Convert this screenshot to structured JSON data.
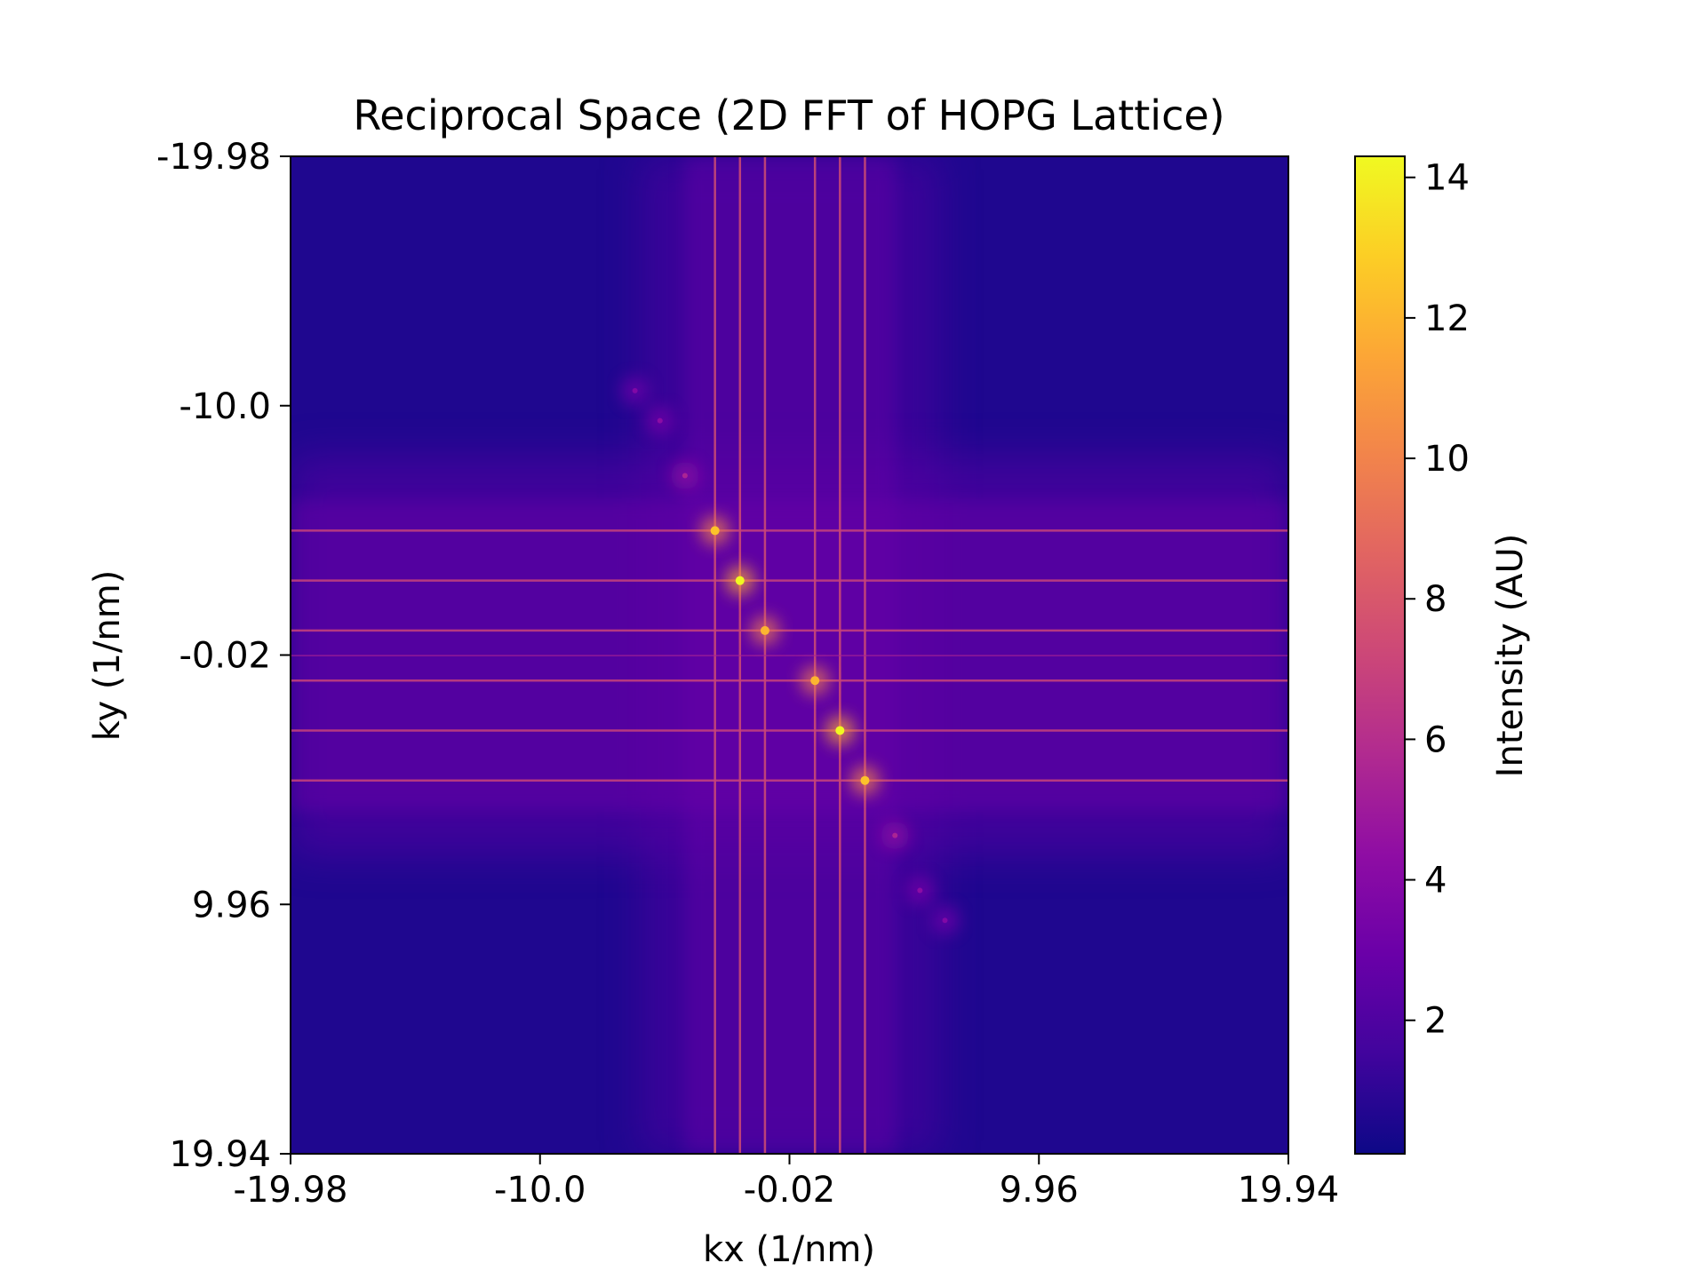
{
  "chart_data": {
    "type": "heatmap",
    "title": "Reciprocal Space (2D FFT of HOPG Lattice)",
    "xlabel": "kx (1/nm)",
    "ylabel": "ky (1/nm)",
    "xlim": [
      -19.98,
      19.94
    ],
    "ylim": [
      -19.98,
      19.94
    ],
    "y_axis_inverted": true,
    "x_ticks": [
      "-19.98",
      "-10.0",
      "-0.02",
      "9.96",
      "19.94"
    ],
    "y_ticks": [
      "-19.98",
      "-10.0",
      "-0.02",
      "9.96",
      "19.94"
    ],
    "colormap": "plasma",
    "colorbar": {
      "label": "Intensity (AU)",
      "range": [
        0.1,
        14.3
      ],
      "ticks": [
        "2",
        "4",
        "6",
        "8",
        "10",
        "12",
        "14"
      ]
    },
    "grid": false,
    "bright_streaks": {
      "kx": [
        -3.0,
        -2.0,
        -1.0,
        1.0,
        2.0,
        3.0
      ],
      "ky": [
        -5.0,
        -3.0,
        -1.0,
        1.0,
        3.0,
        5.0
      ]
    },
    "peaks": [
      {
        "kx": -6.2,
        "ky": -10.6,
        "intensity": 3.8
      },
      {
        "kx": -5.2,
        "ky": -9.4,
        "intensity": 4.2
      },
      {
        "kx": -4.2,
        "ky": -7.2,
        "intensity": 5.5
      },
      {
        "kx": -3.0,
        "ky": -5.0,
        "intensity": 12.5
      },
      {
        "kx": -2.0,
        "ky": -3.0,
        "intensity": 14.3
      },
      {
        "kx": -1.0,
        "ky": -1.0,
        "intensity": 12.0
      },
      {
        "kx": 1.0,
        "ky": 1.0,
        "intensity": 12.0
      },
      {
        "kx": 2.0,
        "ky": 3.0,
        "intensity": 14.3
      },
      {
        "kx": 3.0,
        "ky": 5.0,
        "intensity": 12.5
      },
      {
        "kx": 4.2,
        "ky": 7.2,
        "intensity": 5.5
      },
      {
        "kx": 5.2,
        "ky": 9.4,
        "intensity": 4.2
      },
      {
        "kx": 6.2,
        "ky": 10.6,
        "intensity": 3.8
      }
    ],
    "background_intensity": 0.6
  }
}
